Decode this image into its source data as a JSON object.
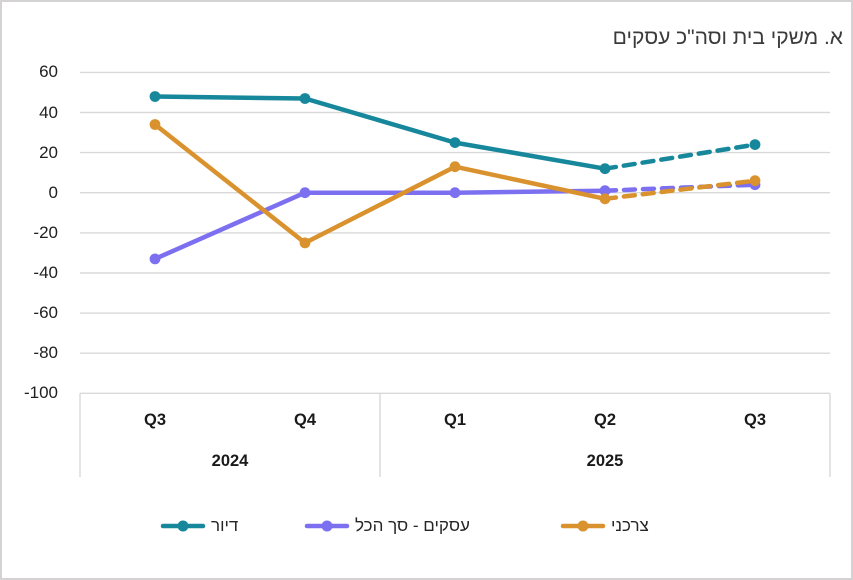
{
  "title": "א. משקי בית וסה\"כ עסקים",
  "window": {
    "background": "#ffffff",
    "frame_border_color": "#d4d2d2"
  },
  "chart_data": {
    "type": "line",
    "rtl": true,
    "title": "א. משקי בית וסה\"כ עסקים",
    "categories": [
      "Q3",
      "Q4",
      "Q1",
      "Q2",
      "Q3"
    ],
    "category_groups": [
      {
        "label": "2024",
        "span": 2
      },
      {
        "label": "2025",
        "span": 3
      }
    ],
    "series": [
      {
        "name": "דיור",
        "color": "#17879C",
        "values": [
          48,
          47,
          25,
          12,
          24
        ],
        "dashed_from_index": 3
      },
      {
        "name": "עסקים - סך הכל",
        "color": "#7C6FF0",
        "values": [
          -33,
          0,
          0,
          1,
          4
        ],
        "dashed_from_index": 3
      },
      {
        "name": "צרכני",
        "color": "#D9922E",
        "values": [
          34,
          -25,
          13,
          -3,
          6
        ],
        "dashed_from_index": 3
      }
    ],
    "ylim": [
      -100,
      60
    ],
    "yticks": [
      60,
      40,
      20,
      0,
      -20,
      -40,
      -60,
      -80,
      -100
    ],
    "grid": true,
    "gridline_color": "#D9D9D9",
    "axis_box_color": "#D9D9D9",
    "axis_label_color": "#1f1f1f",
    "legend_position": "bottom",
    "note": "last segment of every series (Q2 2025 to Q3 2025) is a dashed forecast"
  }
}
